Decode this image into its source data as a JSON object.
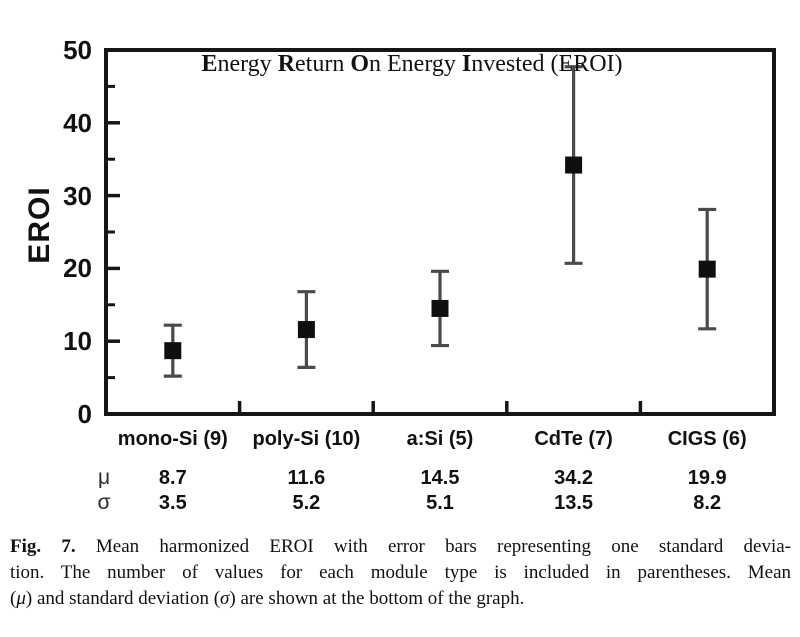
{
  "chart_data": {
    "type": "scatter",
    "title_plain": "Energy Return On Energy Invested (EROI)",
    "title_segments": [
      {
        "text": "E",
        "bold": true
      },
      {
        "text": "nergy ",
        "bold": false
      },
      {
        "text": "R",
        "bold": true
      },
      {
        "text": "eturn ",
        "bold": false
      },
      {
        "text": "O",
        "bold": true
      },
      {
        "text": "n Energy ",
        "bold": false
      },
      {
        "text": "I",
        "bold": true
      },
      {
        "text": "nvested (EROI)",
        "bold": false
      }
    ],
    "ylabel": "EROI",
    "xlabel": "",
    "ylim": [
      0,
      50
    ],
    "yticks_major": [
      0,
      10,
      20,
      30,
      40,
      50
    ],
    "yticks_minor": [
      5,
      15,
      25,
      35,
      45
    ],
    "grid": false,
    "legend": "none",
    "categories": [
      "mono-Si (9)",
      "poly-Si (10)",
      "a:Si (5)",
      "CdTe (7)",
      "CIGS (6)"
    ],
    "series": [
      {
        "name": "Mean harmonized EROI",
        "means": [
          8.7,
          11.6,
          14.5,
          34.2,
          19.9
        ],
        "std_devs": [
          3.5,
          5.2,
          5.1,
          13.5,
          8.2
        ],
        "marker": "filled-square",
        "error_bar": "plus-minus-one-std-dev"
      }
    ],
    "stats_rows": [
      {
        "symbol": "μ",
        "label": "mean",
        "values": [
          "8.7",
          "11.6",
          "14.5",
          "34.2",
          "19.9"
        ]
      },
      {
        "symbol": "σ",
        "label": "standard-deviation",
        "values": [
          "3.5",
          "5.2",
          "5.1",
          "13.5",
          "8.2"
        ]
      }
    ],
    "colors": {
      "marker": "#0f0f0f",
      "error_bar": "#4a4a4a",
      "axis": "#161616",
      "text": "#111111",
      "background": "#ffffff"
    }
  },
  "caption": {
    "lines": [
      [
        {
          "text": "Fig. 7.",
          "style": "bold"
        },
        {
          "text": " Mean harmonized EROI with error bars representing one standard devia-",
          "style": "normal"
        }
      ],
      [
        {
          "text": "tion. The number of values for each module type is included in parentheses. Mean",
          "style": "normal"
        }
      ],
      [
        {
          "text": "(",
          "style": "normal"
        },
        {
          "text": "μ",
          "style": "italic"
        },
        {
          "text": ") and standard deviation (",
          "style": "normal"
        },
        {
          "text": "σ",
          "style": "italic"
        },
        {
          "text": ") are shown at the bottom of the graph.",
          "style": "normal"
        }
      ]
    ]
  }
}
